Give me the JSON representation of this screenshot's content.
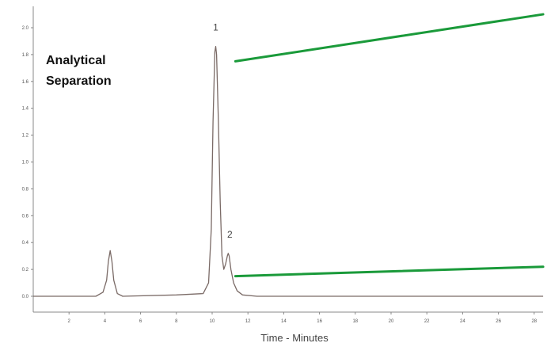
{
  "chart_data": {
    "type": "line",
    "title_lines": [
      "Analytical",
      "Separation"
    ],
    "xlabel": "Time - Minutes",
    "ylabel": "",
    "xlim": [
      0,
      28.5
    ],
    "ylim": [
      -0.05,
      2.1
    ],
    "x_ticks": [
      2,
      4,
      6,
      8,
      10,
      12,
      14,
      16,
      18,
      20,
      22,
      24,
      26,
      28
    ],
    "y_ticks": [
      0.0,
      0.2,
      0.4,
      0.6,
      0.8,
      1.0,
      1.2,
      1.4,
      1.6,
      1.8,
      2.0
    ],
    "y_tick_labels": [
      "0.0",
      "0.2",
      "0.4",
      "0.6",
      "0.8",
      "1.0",
      "1.2",
      "1.4",
      "1.6",
      "1.8",
      "2.0"
    ],
    "x_tick_labels": [
      "2",
      "4",
      "6",
      "8",
      "10",
      "12",
      "14",
      "16",
      "18",
      "20",
      "22",
      "24",
      "26",
      "28"
    ],
    "grid": false,
    "trace_color": "#7a6a66",
    "gradient_color": "#1a9a3a",
    "peaks": [
      {
        "label": "",
        "time": 4.3,
        "height": 0.34
      },
      {
        "label": "1",
        "time": 10.2,
        "height": 1.86
      },
      {
        "label": "2",
        "time": 10.9,
        "height": 0.32
      }
    ],
    "series": [
      {
        "x": [
          0.0,
          3.5,
          3.9,
          4.1,
          4.2,
          4.3,
          4.4,
          4.5,
          4.7,
          5.0,
          8.0,
          9.5,
          9.8,
          9.95,
          10.05,
          10.15,
          10.2,
          10.25,
          10.35,
          10.45,
          10.55,
          10.65,
          10.75,
          10.85,
          10.9,
          10.95,
          11.05,
          11.2,
          11.4,
          11.7,
          12.5,
          28.5
        ],
        "y": [
          0.0,
          0.0,
          0.03,
          0.12,
          0.26,
          0.34,
          0.26,
          0.12,
          0.02,
          0.0,
          0.01,
          0.02,
          0.1,
          0.5,
          1.3,
          1.82,
          1.86,
          1.8,
          1.3,
          0.7,
          0.3,
          0.2,
          0.24,
          0.3,
          0.32,
          0.3,
          0.2,
          0.1,
          0.04,
          0.01,
          0.0,
          0.0
        ]
      }
    ],
    "gradient_lines": [
      {
        "x": [
          11.3,
          28.5
        ],
        "y": [
          1.75,
          2.1
        ]
      },
      {
        "x": [
          11.3,
          28.5
        ],
        "y": [
          0.15,
          0.22
        ]
      }
    ]
  }
}
